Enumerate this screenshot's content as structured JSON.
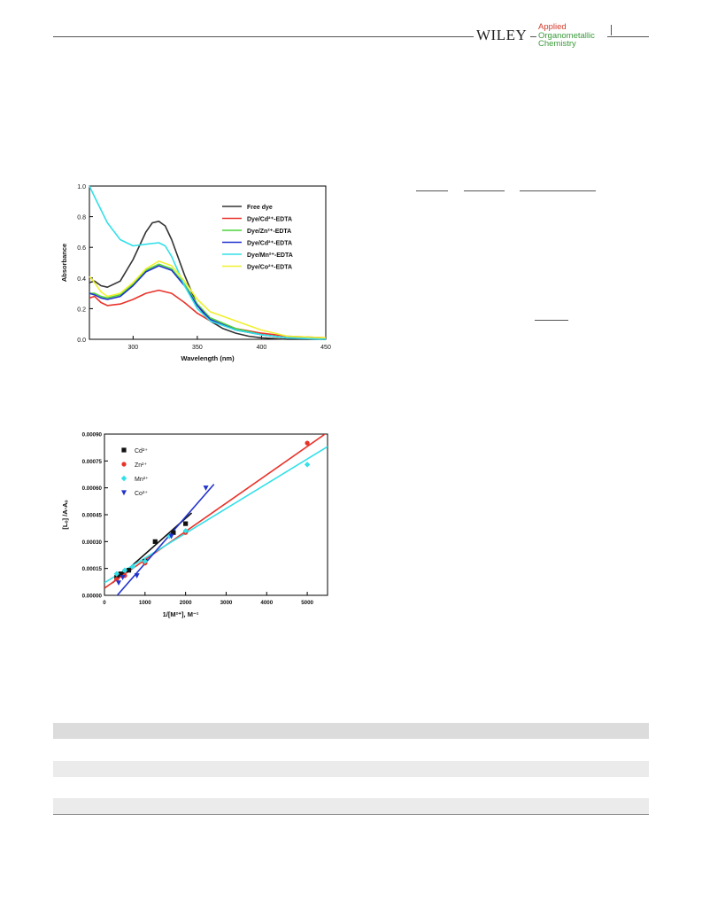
{
  "header": {
    "publisher": "WILEY",
    "journal_lines": [
      "Applied",
      "Organometallic",
      "Chemistry"
    ]
  },
  "chart_data": [
    {
      "type": "line",
      "xlabel": "Wavelength   (nm)",
      "ylabel": "Absorbance",
      "xlim": [
        266,
        450
      ],
      "ylim": [
        0.0,
        1.0
      ],
      "x_ticks": [
        "300",
        "350",
        "400",
        "450"
      ],
      "y_ticks": [
        "0.0",
        "0.2",
        "0.4",
        "0.6",
        "0.8",
        "1.0"
      ],
      "legend_position": "top-right",
      "series": [
        {
          "name": "Free dye",
          "color": "#333333",
          "x": [
            266,
            270,
            275,
            280,
            290,
            300,
            310,
            315,
            320,
            325,
            330,
            340,
            350,
            360,
            370,
            380,
            390,
            400,
            420,
            450
          ],
          "y": [
            0.37,
            0.38,
            0.35,
            0.34,
            0.38,
            0.52,
            0.7,
            0.76,
            0.77,
            0.74,
            0.65,
            0.42,
            0.22,
            0.12,
            0.07,
            0.04,
            0.02,
            0.01,
            0.0,
            0.0
          ]
        },
        {
          "name": "Dye/Cd²⁺-EDTA",
          "color": "#e8332a",
          "x": [
            266,
            270,
            275,
            280,
            290,
            300,
            310,
            320,
            330,
            340,
            350,
            360,
            380,
            400,
            420,
            450
          ],
          "y": [
            0.27,
            0.28,
            0.24,
            0.22,
            0.23,
            0.26,
            0.3,
            0.32,
            0.3,
            0.24,
            0.17,
            0.12,
            0.07,
            0.04,
            0.02,
            0.01
          ]
        },
        {
          "name": "Dye/Zn²⁺-EDTA",
          "color": "#4fd43a",
          "x": [
            266,
            270,
            275,
            280,
            290,
            300,
            310,
            320,
            330,
            340,
            350,
            360,
            380,
            400,
            420,
            450
          ],
          "y": [
            0.3,
            0.3,
            0.28,
            0.27,
            0.29,
            0.36,
            0.45,
            0.49,
            0.46,
            0.36,
            0.23,
            0.14,
            0.07,
            0.03,
            0.01,
            0.0
          ]
        },
        {
          "name": "Dye/Cd²⁺-EDTA",
          "color": "#2233cc",
          "x": [
            266,
            270,
            275,
            280,
            290,
            300,
            310,
            320,
            330,
            340,
            350,
            360,
            380,
            400,
            420,
            450
          ],
          "y": [
            0.3,
            0.29,
            0.27,
            0.26,
            0.28,
            0.35,
            0.44,
            0.48,
            0.45,
            0.35,
            0.22,
            0.13,
            0.06,
            0.03,
            0.01,
            0.0
          ]
        },
        {
          "name": "Dye/Mn²⁺-EDTA",
          "color": "#33e0e8",
          "x": [
            266,
            270,
            280,
            290,
            300,
            310,
            320,
            325,
            330,
            340,
            350,
            360,
            380,
            400,
            420,
            450
          ],
          "y": [
            1.0,
            0.93,
            0.76,
            0.65,
            0.61,
            0.62,
            0.63,
            0.61,
            0.54,
            0.35,
            0.2,
            0.12,
            0.06,
            0.03,
            0.01,
            0.0
          ]
        },
        {
          "name": "Dye/Co²⁺-EDTA",
          "color": "#f0f030",
          "x": [
            266,
            270,
            275,
            280,
            290,
            300,
            310,
            320,
            330,
            340,
            350,
            360,
            380,
            400,
            420,
            450
          ],
          "y": [
            0.41,
            0.37,
            0.31,
            0.28,
            0.3,
            0.37,
            0.46,
            0.51,
            0.48,
            0.38,
            0.26,
            0.18,
            0.12,
            0.06,
            0.02,
            0.01
          ]
        }
      ]
    },
    {
      "type": "scatter",
      "xlabel": "1/[M²⁺],  M⁻¹",
      "ylabel": "[Lₒ] /A-Aₒ",
      "xlim": [
        0,
        5500
      ],
      "ylim": [
        0.0,
        0.0009
      ],
      "x_ticks": [
        "0",
        "1000",
        "2000",
        "3000",
        "4000",
        "5000"
      ],
      "y_ticks": [
        "0.00000",
        "0.00015",
        "0.00030",
        "0.00045",
        "0.00060",
        "0.00075",
        "0.00090"
      ],
      "legend_position": "top-left",
      "series": [
        {
          "name": "Cd²⁺",
          "marker": "square",
          "color": "#111111",
          "x": [
            300,
            400,
            600,
            1000,
            1250,
            1700,
            2000
          ],
          "y": [
            0.0001,
            0.00012,
            0.00014,
            0.00019,
            0.0003,
            0.00035,
            0.0004
          ],
          "fit_x": [
            200,
            2150
          ],
          "fit_y": [
            7e-05,
            0.00046
          ]
        },
        {
          "name": "Zn²⁺",
          "marker": "circle",
          "color": "#e8332a",
          "x": [
            300,
            500,
            1000,
            2000,
            5000
          ],
          "y": [
            9e-05,
            0.00011,
            0.00018,
            0.00035,
            0.00085
          ],
          "fit_x": [
            0,
            5500
          ],
          "fit_y": [
            4e-05,
            0.00091
          ]
        },
        {
          "name": "Mn²⁺",
          "marker": "diamond",
          "color": "#33e0e8",
          "x": [
            300,
            500,
            700,
            1000,
            1600,
            2000,
            5000
          ],
          "y": [
            0.00012,
            0.00014,
            0.00016,
            0.00019,
            0.00033,
            0.00036,
            0.00073
          ],
          "fit_x": [
            0,
            5500
          ],
          "fit_y": [
            7e-05,
            0.00083
          ]
        },
        {
          "name": "Co²⁺",
          "marker": "triangle-down",
          "color": "#2233cc",
          "x": [
            350,
            450,
            800,
            1650,
            2500
          ],
          "y": [
            7e-05,
            0.0001,
            0.00011,
            0.00033,
            0.0006
          ],
          "fit_x": [
            200,
            2700
          ],
          "fit_y": [
            -3e-05,
            0.00062
          ]
        }
      ]
    }
  ]
}
